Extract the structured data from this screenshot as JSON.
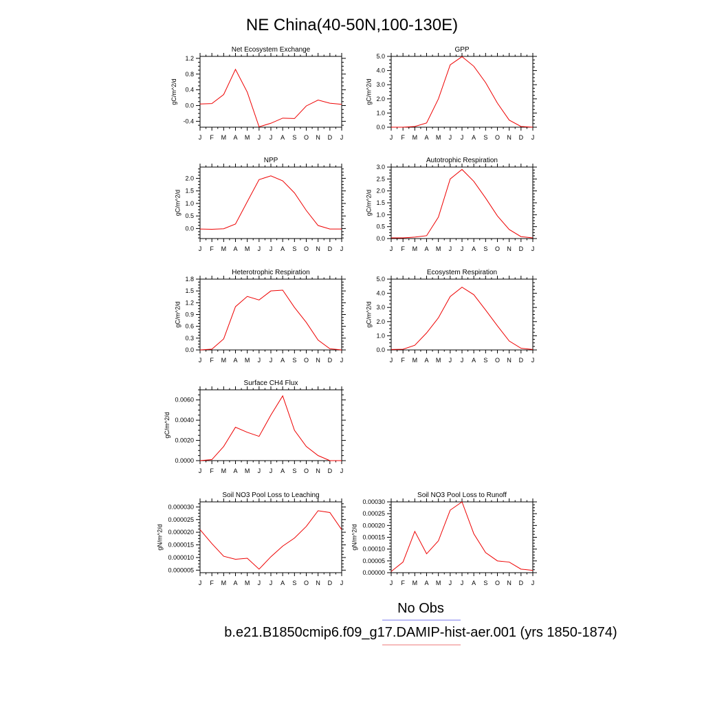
{
  "title": "NE China(40-50N,100-130E)",
  "months": [
    "J",
    "F",
    "M",
    "A",
    "M",
    "J",
    "J",
    "A",
    "S",
    "O",
    "N",
    "D",
    "J"
  ],
  "legend": {
    "obs_label": "No Obs",
    "obs_color": "#7777ee",
    "case_label": "b.e21.B1850cmip6.f09_g17.DAMIP-hist-aer.001 (yrs 1850-1874)",
    "case_color": "#ee7777"
  },
  "line_color": "#ee0000",
  "chart_data": [
    {
      "type": "line",
      "title": "Net Ecosystem Exchange",
      "ylabel": "gC/m^2/d",
      "ylim": [
        -0.55,
        1.25
      ],
      "yticks": [
        -0.4,
        0.0,
        0.4,
        0.8,
        1.2
      ],
      "yticklabels": [
        "-0.4",
        "0.0",
        "0.4",
        "0.8",
        "1.2"
      ],
      "values": [
        0.04,
        0.05,
        0.28,
        0.92,
        0.34,
        -0.54,
        -0.45,
        -0.32,
        -0.33,
        -0.01,
        0.14,
        0.06,
        0.03
      ]
    },
    {
      "type": "line",
      "title": "GPP",
      "ylabel": "gC/m^2/d",
      "ylim": [
        0.0,
        5.0
      ],
      "yticks": [
        0.0,
        1.0,
        2.0,
        3.0,
        4.0,
        5.0
      ],
      "yticklabels": [
        "0.0",
        "1.0",
        "2.0",
        "3.0",
        "4.0",
        "5.0"
      ],
      "values": [
        0.0,
        0.0,
        0.05,
        0.3,
        2.0,
        4.4,
        4.98,
        4.3,
        3.15,
        1.7,
        0.5,
        0.05,
        0.0
      ]
    },
    {
      "type": "line",
      "title": "NPP",
      "ylabel": "gC/m^2/d",
      "ylim": [
        -0.4,
        2.45
      ],
      "yticks": [
        0.0,
        0.5,
        1.0,
        1.5,
        2.0
      ],
      "yticklabels": [
        "0.0",
        "0.5",
        "1.0",
        "1.5",
        "2.0"
      ],
      "values": [
        -0.02,
        -0.03,
        -0.01,
        0.18,
        1.07,
        1.95,
        2.1,
        1.9,
        1.42,
        0.72,
        0.12,
        -0.02,
        -0.02
      ]
    },
    {
      "type": "line",
      "title": "Autotrophic Respiration",
      "ylabel": "gC/m^2/d",
      "ylim": [
        0.0,
        3.0
      ],
      "yticks": [
        0.0,
        0.5,
        1.0,
        1.5,
        2.0,
        2.5,
        3.0
      ],
      "yticklabels": [
        "0.0",
        "0.5",
        "1.0",
        "1.5",
        "2.0",
        "2.5",
        "3.0"
      ],
      "values": [
        0.03,
        0.03,
        0.06,
        0.12,
        0.9,
        2.5,
        2.9,
        2.4,
        1.7,
        0.95,
        0.38,
        0.08,
        0.03
      ]
    },
    {
      "type": "line",
      "title": "Heterotrophic Respiration",
      "ylabel": "gC/m^2/d",
      "ylim": [
        0.0,
        1.8
      ],
      "yticks": [
        0.0,
        0.3,
        0.6,
        0.9,
        1.2,
        1.5,
        1.8
      ],
      "yticklabels": [
        "0.0",
        "0.3",
        "0.6",
        "0.9",
        "1.2",
        "1.5",
        "1.8"
      ],
      "values": [
        0.0,
        0.02,
        0.28,
        1.1,
        1.36,
        1.27,
        1.5,
        1.52,
        1.08,
        0.7,
        0.25,
        0.03,
        0.0
      ]
    },
    {
      "type": "line",
      "title": "Ecosystem Respiration",
      "ylabel": "gC/m^2/d",
      "ylim": [
        0.0,
        5.0
      ],
      "yticks": [
        0.0,
        1.0,
        2.0,
        3.0,
        4.0,
        5.0
      ],
      "yticklabels": [
        "0.0",
        "1.0",
        "2.0",
        "3.0",
        "4.0",
        "5.0"
      ],
      "values": [
        0.03,
        0.05,
        0.33,
        1.2,
        2.27,
        3.77,
        4.43,
        3.9,
        2.82,
        1.7,
        0.63,
        0.12,
        0.03
      ]
    },
    {
      "type": "line",
      "title": "Surface CH4 Flux",
      "ylabel": "gC/m^2/d",
      "ylim": [
        0.0,
        0.007
      ],
      "yticks": [
        0.0,
        0.002,
        0.004,
        0.006
      ],
      "yticklabels": [
        "0.0000",
        "0.0020",
        "0.0040",
        "0.0060"
      ],
      "values": [
        0.0,
        0.0001,
        0.0014,
        0.0033,
        0.0028,
        0.0024,
        0.0045,
        0.0064,
        0.003,
        0.0014,
        0.0005,
        0.0,
        0.0
      ]
    },
    {
      "type": "line",
      "title": "Soil NO3 Pool Loss to Leaching",
      "ylabel": "gN/m^2/d",
      "ylim": [
        4e-06,
        3.2e-05
      ],
      "yticks": [
        5e-06,
        1e-05,
        1.5e-05,
        2e-05,
        2.5e-05,
        3e-05
      ],
      "yticklabels": [
        "0.000005",
        "0.000010",
        "0.000015",
        "0.000020",
        "0.000025",
        "0.000030"
      ],
      "values": [
        2.1e-05,
        1.55e-05,
        1.05e-05,
        9.3e-06,
        9.7e-06,
        5.4e-06,
        1.03e-05,
        1.45e-05,
        1.77e-05,
        2.23e-05,
        2.85e-05,
        2.78e-05,
        2.1e-05
      ]
    },
    {
      "type": "line",
      "title": "Soil NO3 Pool Loss to Runoff",
      "ylabel": "gN/m^2/d",
      "ylim": [
        0.0,
        0.0003
      ],
      "yticks": [
        0.0,
        5e-05,
        0.0001,
        0.00015,
        0.0002,
        0.00025,
        0.0003
      ],
      "yticklabels": [
        "0.00000",
        "0.00005",
        "0.00010",
        "0.00015",
        "0.00020",
        "0.00025",
        "0.00030"
      ],
      "values": [
        5e-06,
        4.5e-05,
        0.000175,
        8e-05,
        0.000135,
        0.000265,
        0.0003,
        0.000165,
        8.5e-05,
        5e-05,
        4.5e-05,
        1.5e-05,
        1e-05
      ]
    }
  ]
}
